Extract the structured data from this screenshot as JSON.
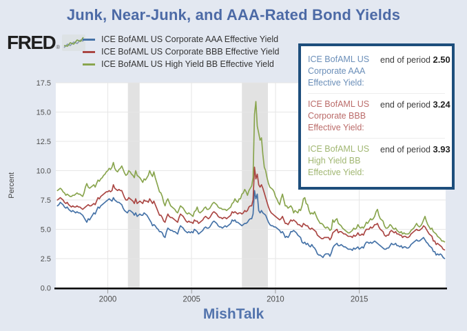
{
  "page": {
    "background": "#e3e8f1",
    "plot_background": "#ffffff",
    "gridline_color": "#e6e6e6",
    "recession_band_color": "#e2e2e2"
  },
  "header": {
    "title": "Junk, Near-Junk, and AAA-Rated Bond Yields",
    "title_color": "#4c6aa6"
  },
  "logo": {
    "text": "FRED",
    "registered": "®",
    "icon": "fred-sparkline-icon"
  },
  "legend": {
    "items": [
      {
        "label": "ICE BofAML US Corporate AAA Effective Yield",
        "color": "#4572a7"
      },
      {
        "label": "ICE BofAML US Corporate BBB Effective Yield",
        "color": "#aa4643"
      },
      {
        "label": "ICE BofAML US High Yield BB Effective Yield",
        "color": "#89a54e"
      }
    ]
  },
  "info_box": {
    "border_color": "#1d4e7c",
    "rows": [
      {
        "label": "ICE BofAML US Corporate AAA Effective Yield:",
        "prefix": "end of period",
        "value": "2.50",
        "color": "#4572a7"
      },
      {
        "label": "ICE BofAML US Corporate BBB Effective Yield:",
        "prefix": "end of period",
        "value": "3.24",
        "color": "#aa4643"
      },
      {
        "label": "ICE BofAML US High Yield BB Effective Yield:",
        "prefix": "end of period",
        "value": "3.93",
        "color": "#89a54e"
      }
    ]
  },
  "footer": {
    "watermark": "MishTalk"
  },
  "chart_data": {
    "type": "line",
    "title": "Junk, Near-Junk, and AAA-Rated Bond Yields",
    "xlabel": "",
    "ylabel": "Percent",
    "ylim": [
      0,
      17.5
    ],
    "y_ticks": [
      0,
      2.5,
      5,
      7.5,
      10,
      12.5,
      15,
      17.5
    ],
    "xlim": [
      1996.9,
      2020.15
    ],
    "x_ticks": [
      2000,
      2005,
      2010,
      2015
    ],
    "grid": true,
    "legend_position": "top",
    "x_start": 1997.0,
    "x_step_years": 0.0833333,
    "recession_bands": [
      [
        2001.2,
        2001.9
      ],
      [
        2008.0,
        2009.55
      ]
    ],
    "series": [
      {
        "name": "ICE BofAML US Corporate AAA Effective Yield",
        "color": "#4572a7",
        "end_of_period": 2.5,
        "values": [
          7.0,
          7.1,
          7.3,
          7.2,
          7.1,
          6.9,
          6.8,
          6.9,
          6.7,
          6.6,
          6.5,
          6.6,
          6.5,
          6.4,
          6.5,
          6.4,
          6.4,
          6.3,
          6.2,
          6.0,
          5.8,
          5.6,
          5.9,
          5.8,
          6.0,
          6.2,
          6.4,
          6.3,
          6.6,
          6.9,
          6.8,
          7.0,
          7.1,
          7.2,
          7.3,
          7.4,
          7.5,
          7.6,
          7.5,
          7.4,
          7.7,
          7.5,
          7.4,
          7.3,
          7.3,
          7.2,
          7.1,
          6.8,
          6.6,
          6.5,
          6.4,
          6.6,
          6.6,
          6.5,
          6.4,
          6.2,
          6.4,
          6.1,
          6.2,
          6.3,
          6.2,
          6.2,
          6.4,
          6.3,
          6.2,
          6.0,
          5.8,
          5.6,
          5.3,
          5.4,
          5.3,
          5.1,
          5.0,
          4.8,
          4.8,
          4.7,
          4.4,
          4.3,
          4.8,
          5.1,
          5.0,
          4.9,
          4.9,
          4.8,
          4.8,
          4.7,
          4.6,
          5.0,
          5.3,
          5.2,
          5.1,
          4.9,
          4.8,
          4.7,
          4.8,
          4.7,
          4.8,
          4.7,
          5.0,
          4.9,
          4.8,
          4.6,
          4.7,
          4.8,
          4.9,
          5.1,
          5.2,
          5.1,
          5.1,
          5.2,
          5.4,
          5.6,
          5.7,
          5.6,
          5.5,
          5.3,
          5.2,
          5.2,
          5.1,
          5.2,
          5.3,
          5.2,
          5.3,
          5.4,
          5.5,
          5.8,
          5.7,
          5.8,
          5.6,
          5.6,
          5.5,
          5.4,
          5.3,
          5.4,
          5.5,
          5.5,
          5.6,
          5.8,
          5.9,
          5.9,
          6.3,
          8.3,
          7.6,
          8.0,
          6.6,
          6.4,
          6.6,
          6.4,
          6.3,
          6.2,
          5.9,
          5.6,
          5.4,
          5.3,
          5.3,
          5.2,
          5.2,
          5.1,
          5.0,
          4.9,
          4.7,
          4.8,
          4.6,
          4.3,
          4.4,
          4.3,
          4.5,
          4.8,
          4.8,
          4.9,
          4.8,
          4.7,
          4.5,
          4.4,
          4.3,
          3.9,
          3.8,
          3.9,
          3.7,
          3.8,
          3.6,
          3.5,
          3.7,
          3.5,
          3.4,
          3.2,
          2.9,
          2.8,
          2.8,
          2.7,
          2.6,
          2.8,
          2.9,
          2.9,
          2.9,
          2.7,
          3.0,
          3.4,
          3.6,
          3.7,
          3.8,
          3.6,
          3.6,
          3.7,
          3.6,
          3.5,
          3.5,
          3.4,
          3.3,
          3.3,
          3.3,
          3.2,
          3.4,
          3.3,
          3.4,
          3.5,
          3.3,
          3.4,
          3.5,
          3.4,
          3.7,
          3.9,
          3.9,
          3.8,
          3.9,
          3.8,
          3.9,
          4.0,
          3.9,
          3.8,
          3.7,
          3.6,
          3.5,
          3.4,
          3.3,
          3.3,
          3.4,
          3.4,
          3.6,
          3.8,
          3.7,
          3.7,
          3.8,
          3.6,
          3.6,
          3.5,
          3.6,
          3.4,
          3.5,
          3.5,
          3.4,
          3.4,
          3.5,
          3.7,
          3.8,
          3.9,
          4.0,
          4.1,
          4.0,
          4.0,
          4.1,
          4.2,
          4.3,
          4.1,
          3.9,
          3.8,
          3.6,
          3.5,
          3.4,
          3.1,
          3.1,
          2.8,
          2.9,
          2.8,
          2.9,
          2.8,
          2.6,
          2.5
        ]
      },
      {
        "name": "ICE BofAML US Corporate BBB Effective Yield",
        "color": "#aa4643",
        "end_of_period": 3.24,
        "values": [
          7.5,
          7.6,
          7.7,
          7.6,
          7.5,
          7.3,
          7.2,
          7.3,
          7.1,
          7.0,
          6.9,
          7.0,
          6.9,
          6.9,
          7.0,
          6.9,
          6.9,
          6.8,
          6.7,
          6.8,
          6.9,
          7.0,
          7.1,
          7.0,
          7.0,
          7.1,
          7.2,
          7.1,
          7.4,
          7.7,
          7.6,
          7.8,
          7.9,
          8.0,
          8.1,
          8.2,
          8.2,
          8.3,
          8.2,
          8.3,
          8.8,
          8.5,
          8.4,
          8.3,
          8.4,
          8.3,
          8.3,
          8.0,
          7.7,
          7.5,
          7.5,
          7.7,
          7.6,
          7.5,
          7.4,
          7.2,
          7.6,
          7.2,
          7.3,
          7.4,
          7.3,
          7.2,
          7.5,
          7.4,
          7.4,
          7.3,
          7.6,
          7.4,
          7.2,
          7.4,
          7.1,
          6.8,
          6.5,
          6.2,
          6.2,
          6.0,
          5.7,
          5.6,
          6.0,
          6.3,
          6.1,
          6.0,
          6.0,
          5.9,
          5.8,
          5.7,
          5.6,
          6.0,
          6.3,
          6.2,
          6.1,
          5.9,
          5.7,
          5.6,
          5.7,
          5.6,
          5.6,
          5.5,
          5.8,
          5.7,
          5.7,
          5.5,
          5.6,
          5.7,
          5.8,
          6.0,
          6.1,
          6.0,
          5.9,
          6.0,
          6.2,
          6.4,
          6.5,
          6.4,
          6.3,
          6.1,
          6.0,
          6.0,
          5.9,
          6.0,
          6.0,
          5.9,
          6.0,
          6.1,
          6.2,
          6.5,
          6.4,
          6.5,
          6.4,
          6.3,
          6.4,
          6.4,
          6.3,
          6.4,
          6.6,
          6.5,
          6.6,
          6.9,
          7.0,
          7.0,
          7.5,
          10.3,
          9.3,
          9.7,
          8.8,
          8.6,
          8.8,
          8.5,
          8.1,
          7.7,
          7.3,
          6.9,
          6.6,
          6.4,
          6.3,
          6.2,
          6.1,
          6.0,
          5.9,
          5.8,
          5.9,
          6.1,
          5.8,
          5.5,
          5.5,
          5.4,
          5.6,
          5.8,
          5.7,
          5.8,
          5.7,
          5.6,
          5.4,
          5.4,
          5.3,
          5.2,
          5.5,
          5.4,
          5.3,
          5.3,
          5.1,
          5.0,
          5.1,
          5.0,
          4.9,
          4.8,
          4.5,
          4.4,
          4.3,
          4.2,
          4.2,
          4.3,
          4.3,
          4.3,
          4.3,
          4.1,
          4.3,
          4.7,
          4.8,
          4.9,
          5.0,
          4.7,
          4.8,
          4.8,
          4.7,
          4.6,
          4.6,
          4.5,
          4.4,
          4.4,
          4.4,
          4.3,
          4.5,
          4.4,
          4.5,
          4.7,
          4.5,
          4.5,
          4.6,
          4.5,
          4.8,
          5.0,
          5.0,
          5.0,
          5.2,
          5.1,
          5.2,
          5.4,
          5.4,
          5.5,
          5.2,
          5.0,
          4.9,
          4.8,
          4.5,
          4.4,
          4.5,
          4.5,
          4.8,
          4.9,
          4.8,
          4.7,
          4.8,
          4.6,
          4.6,
          4.5,
          4.5,
          4.3,
          4.4,
          4.4,
          4.3,
          4.3,
          4.4,
          4.6,
          4.7,
          4.8,
          4.9,
          5.0,
          4.9,
          4.9,
          5.0,
          5.1,
          5.3,
          5.2,
          5.0,
          4.8,
          4.6,
          4.5,
          4.4,
          4.0,
          4.0,
          3.7,
          3.8,
          3.7,
          3.6,
          3.5,
          3.3,
          3.24
        ]
      },
      {
        "name": "ICE BofAML US High Yield BB Effective Yield",
        "color": "#89a54e",
        "end_of_period": 3.93,
        "values": [
          8.3,
          8.4,
          8.5,
          8.4,
          8.2,
          8.1,
          7.9,
          8.0,
          7.9,
          7.8,
          7.8,
          7.9,
          7.9,
          8.0,
          8.1,
          8.0,
          8.0,
          7.9,
          7.8,
          8.1,
          8.6,
          8.9,
          8.6,
          8.5,
          8.6,
          8.7,
          8.8,
          8.6,
          8.9,
          9.2,
          9.1,
          9.3,
          9.4,
          9.6,
          9.7,
          9.9,
          10.0,
          10.2,
          10.1,
          10.3,
          10.7,
          10.2,
          10.0,
          9.9,
          10.1,
          10.2,
          10.4,
          10.1,
          9.8,
          9.6,
          9.7,
          10.0,
          9.9,
          9.7,
          9.6,
          9.4,
          10.0,
          9.6,
          9.5,
          9.4,
          9.2,
          9.0,
          9.3,
          9.2,
          9.4,
          9.6,
          10.0,
          9.7,
          9.5,
          9.9,
          9.4,
          9.0,
          8.6,
          8.2,
          8.1,
          7.8,
          7.3,
          7.0,
          7.4,
          7.6,
          7.3,
          7.0,
          6.9,
          6.8,
          6.7,
          6.5,
          6.4,
          6.7,
          7.0,
          6.9,
          6.8,
          6.6,
          6.4,
          6.3,
          6.4,
          6.3,
          6.2,
          6.1,
          6.5,
          6.6,
          6.9,
          6.5,
          6.4,
          6.5,
          6.6,
          6.8,
          6.9,
          6.7,
          6.7,
          6.8,
          7.0,
          7.2,
          7.3,
          7.2,
          7.1,
          6.9,
          6.8,
          6.8,
          6.7,
          6.7,
          6.7,
          6.6,
          6.7,
          6.8,
          6.9,
          7.2,
          7.3,
          7.6,
          7.4,
          7.3,
          7.6,
          7.6,
          8.0,
          8.1,
          8.4,
          8.2,
          7.9,
          8.3,
          8.5,
          8.7,
          9.4,
          14.8,
          15.9,
          13.8,
          13.2,
          12.6,
          12.8,
          11.4,
          10.3,
          10.0,
          9.4,
          8.9,
          8.6,
          8.5,
          8.4,
          8.2,
          7.8,
          7.6,
          7.3,
          7.1,
          7.6,
          8.0,
          7.5,
          7.0,
          7.0,
          6.8,
          6.9,
          7.0,
          6.8,
          6.4,
          6.6,
          6.5,
          6.4,
          6.7,
          6.6,
          7.0,
          7.6,
          7.7,
          7.2,
          7.1,
          6.6,
          6.3,
          6.4,
          6.3,
          6.5,
          6.2,
          5.9,
          5.7,
          5.5,
          5.5,
          5.4,
          5.2,
          5.1,
          5.2,
          5.1,
          4.9,
          5.0,
          5.8,
          5.6,
          5.8,
          5.9,
          5.5,
          5.4,
          5.3,
          5.1,
          5.0,
          4.9,
          4.8,
          4.7,
          4.7,
          4.8,
          4.9,
          5.1,
          5.0,
          5.1,
          5.4,
          5.2,
          5.1,
          5.2,
          5.1,
          5.3,
          5.6,
          5.5,
          5.7,
          5.9,
          5.8,
          5.9,
          6.1,
          6.5,
          6.7,
          6.2,
          5.9,
          5.8,
          5.7,
          5.3,
          5.1,
          5.1,
          5.2,
          5.4,
          5.3,
          5.1,
          5.0,
          5.1,
          4.9,
          4.8,
          4.7,
          4.8,
          4.6,
          4.7,
          4.6,
          4.6,
          4.6,
          4.7,
          4.9,
          5.0,
          5.1,
          5.3,
          5.5,
          5.3,
          5.2,
          5.3,
          5.5,
          5.8,
          6.1,
          5.7,
          5.4,
          5.2,
          5.0,
          5.1,
          4.8,
          4.7,
          4.6,
          4.4,
          4.3,
          4.2,
          4.0,
          4.0,
          3.93
        ]
      }
    ]
  }
}
